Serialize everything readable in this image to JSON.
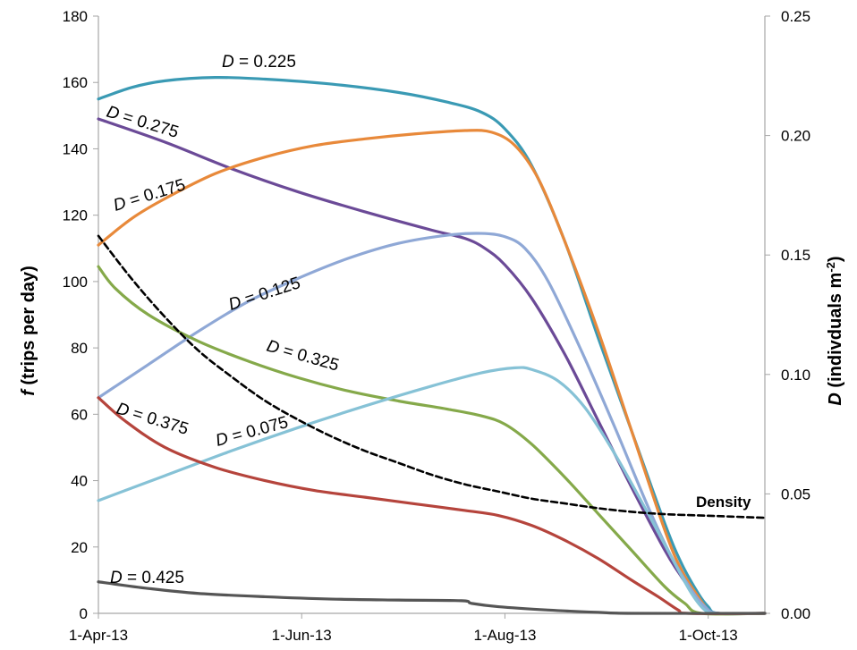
{
  "chart_data": {
    "type": "line",
    "title": "",
    "xlabel": "",
    "ylabel": "f (trips per day)",
    "ylabel_italic": "f",
    "ylabel_rest": " (trips per day)",
    "y2label": "D (indivduals m-2)",
    "y2label_italic": "D",
    "y2label_rest": " (indivduals m",
    "y2label_sup": "-2",
    "y2label_close": ")",
    "x_ticks": [
      "1-Apr-13",
      "1-Jun-13",
      "1-Aug-13",
      "1-Oct-13"
    ],
    "x_tick_days": [
      0,
      61,
      122,
      183
    ],
    "xlim": [
      0,
      200
    ],
    "y_ticks": [
      "0",
      "20",
      "40",
      "60",
      "80",
      "100",
      "120",
      "140",
      "160",
      "180"
    ],
    "ylim": [
      0,
      180
    ],
    "y2_ticks": [
      "0.00",
      "0.05",
      "0.10",
      "0.15",
      "0.20",
      "0.25"
    ],
    "y2lim": [
      0,
      0.25
    ],
    "grid": false,
    "legend": "none",
    "series": [
      {
        "name": "D = 0.225",
        "label_prefix": "D",
        "label_rest": " = 0.225",
        "color": "#3a9ab4",
        "axis": "left",
        "dash": false,
        "points": [
          [
            0,
            155
          ],
          [
            10,
            158.5
          ],
          [
            20,
            160.5
          ],
          [
            35,
            161.5
          ],
          [
            50,
            161
          ],
          [
            70,
            159.5
          ],
          [
            90,
            157
          ],
          [
            105,
            154
          ],
          [
            115,
            151
          ],
          [
            122,
            146
          ],
          [
            130,
            135
          ],
          [
            140,
            112
          ],
          [
            150,
            83
          ],
          [
            160,
            55
          ],
          [
            170,
            27
          ],
          [
            175,
            15
          ],
          [
            180,
            6
          ],
          [
            183,
            2
          ],
          [
            186,
            0
          ],
          [
            200,
            0
          ]
        ]
      },
      {
        "name": "D = 0.275",
        "label_prefix": "D",
        "label_rest": " = 0.275",
        "color": "#6b4a97",
        "axis": "left",
        "dash": false,
        "points": [
          [
            0,
            149
          ],
          [
            20,
            142
          ],
          [
            40,
            134
          ],
          [
            60,
            127
          ],
          [
            80,
            121
          ],
          [
            100,
            115.5
          ],
          [
            110,
            113
          ],
          [
            116,
            110
          ],
          [
            122,
            105
          ],
          [
            130,
            95
          ],
          [
            140,
            78
          ],
          [
            150,
            58
          ],
          [
            160,
            38
          ],
          [
            170,
            19
          ],
          [
            175,
            11
          ],
          [
            180,
            4
          ],
          [
            183,
            1
          ],
          [
            186,
            0
          ],
          [
            200,
            0
          ]
        ]
      },
      {
        "name": "D = 0.175",
        "label_prefix": "D",
        "label_rest": " = 0.175",
        "color": "#e8893a",
        "axis": "left",
        "dash": false,
        "points": [
          [
            0,
            111
          ],
          [
            10,
            119
          ],
          [
            20,
            125
          ],
          [
            35,
            132.5
          ],
          [
            50,
            137.5
          ],
          [
            65,
            141
          ],
          [
            80,
            143
          ],
          [
            95,
            144.5
          ],
          [
            110,
            145.5
          ],
          [
            118,
            145
          ],
          [
            125,
            141
          ],
          [
            132,
            131
          ],
          [
            140,
            112
          ],
          [
            150,
            85
          ],
          [
            160,
            55
          ],
          [
            170,
            25
          ],
          [
            175,
            13
          ],
          [
            180,
            5
          ],
          [
            183,
            1
          ],
          [
            186,
            0
          ],
          [
            200,
            0
          ]
        ]
      },
      {
        "name": "D = 0.125",
        "label_prefix": "D",
        "label_rest": " = 0.125",
        "color": "#8fa8d6",
        "axis": "left",
        "dash": false,
        "points": [
          [
            0,
            65
          ],
          [
            15,
            75
          ],
          [
            30,
            85
          ],
          [
            45,
            94
          ],
          [
            60,
            101
          ],
          [
            75,
            107
          ],
          [
            90,
            111.5
          ],
          [
            105,
            114
          ],
          [
            115,
            114.5
          ],
          [
            122,
            113.5
          ],
          [
            128,
            110
          ],
          [
            135,
            100
          ],
          [
            145,
            79
          ],
          [
            155,
            56
          ],
          [
            165,
            32
          ],
          [
            172,
            17
          ],
          [
            178,
            7
          ],
          [
            182,
            2
          ],
          [
            186,
            0
          ],
          [
            200,
            0
          ]
        ]
      },
      {
        "name": "D = 0.325",
        "label_prefix": "D",
        "label_rest": " = 0.325",
        "color": "#85a94a",
        "axis": "left",
        "dash": false,
        "points": [
          [
            0,
            104.5
          ],
          [
            5,
            98
          ],
          [
            15,
            90
          ],
          [
            30,
            82
          ],
          [
            45,
            76
          ],
          [
            60,
            71
          ],
          [
            75,
            67
          ],
          [
            90,
            64
          ],
          [
            105,
            61.5
          ],
          [
            115,
            59.5
          ],
          [
            122,
            57
          ],
          [
            130,
            51
          ],
          [
            140,
            41
          ],
          [
            150,
            30
          ],
          [
            160,
            19
          ],
          [
            170,
            8
          ],
          [
            176,
            3
          ],
          [
            181,
            0
          ],
          [
            200,
            0
          ]
        ]
      },
      {
        "name": "D = 0.075",
        "label_prefix": "D",
        "label_rest": " = 0.075",
        "color": "#86c2d6",
        "axis": "left",
        "dash": false,
        "points": [
          [
            0,
            34
          ],
          [
            20,
            41.5
          ],
          [
            40,
            49
          ],
          [
            60,
            56
          ],
          [
            80,
            62.5
          ],
          [
            100,
            68.5
          ],
          [
            115,
            72.5
          ],
          [
            125,
            74
          ],
          [
            130,
            73.5
          ],
          [
            138,
            70
          ],
          [
            146,
            62
          ],
          [
            155,
            48
          ],
          [
            165,
            30
          ],
          [
            173,
            15
          ],
          [
            178,
            6
          ],
          [
            182,
            1
          ],
          [
            186,
            0
          ],
          [
            200,
            0
          ]
        ]
      },
      {
        "name": "D = 0.375",
        "label_prefix": "D",
        "label_rest": " = 0.375",
        "color": "#b5443c",
        "axis": "left",
        "dash": false,
        "points": [
          [
            0,
            65
          ],
          [
            8,
            58
          ],
          [
            20,
            50
          ],
          [
            35,
            44
          ],
          [
            50,
            40
          ],
          [
            65,
            37
          ],
          [
            80,
            35
          ],
          [
            95,
            33
          ],
          [
            110,
            31
          ],
          [
            120,
            29.5
          ],
          [
            130,
            26.5
          ],
          [
            140,
            22
          ],
          [
            150,
            16.5
          ],
          [
            160,
            10
          ],
          [
            168,
            5
          ],
          [
            174,
            1
          ],
          [
            177,
            0
          ],
          [
            200,
            0
          ]
        ]
      },
      {
        "name": "D = 0.425",
        "label_prefix": "D",
        "label_rest": " = 0.425",
        "color": "#555555",
        "axis": "left",
        "dash": false,
        "points": [
          [
            0,
            9.5
          ],
          [
            15,
            7.5
          ],
          [
            30,
            6
          ],
          [
            50,
            5
          ],
          [
            70,
            4.3
          ],
          [
            90,
            4
          ],
          [
            109,
            3.8
          ],
          [
            112,
            3
          ],
          [
            120,
            2
          ],
          [
            135,
            1
          ],
          [
            150,
            0.3
          ],
          [
            160,
            0
          ],
          [
            200,
            0
          ]
        ]
      },
      {
        "name": "Density",
        "label_prefix": "",
        "label_rest": "Density",
        "color": "#000000",
        "axis": "right",
        "dash": true,
        "points": [
          [
            0,
            0.158
          ],
          [
            10,
            0.14
          ],
          [
            20,
            0.124
          ],
          [
            30,
            0.11
          ],
          [
            40,
            0.099
          ],
          [
            50,
            0.089
          ],
          [
            60,
            0.081
          ],
          [
            70,
            0.074
          ],
          [
            80,
            0.068
          ],
          [
            90,
            0.063
          ],
          [
            100,
            0.058
          ],
          [
            110,
            0.054
          ],
          [
            120,
            0.051
          ],
          [
            130,
            0.048
          ],
          [
            140,
            0.046
          ],
          [
            150,
            0.044
          ],
          [
            160,
            0.0425
          ],
          [
            170,
            0.0415
          ],
          [
            180,
            0.041
          ],
          [
            190,
            0.0405
          ],
          [
            200,
            0.04
          ]
        ]
      }
    ]
  }
}
